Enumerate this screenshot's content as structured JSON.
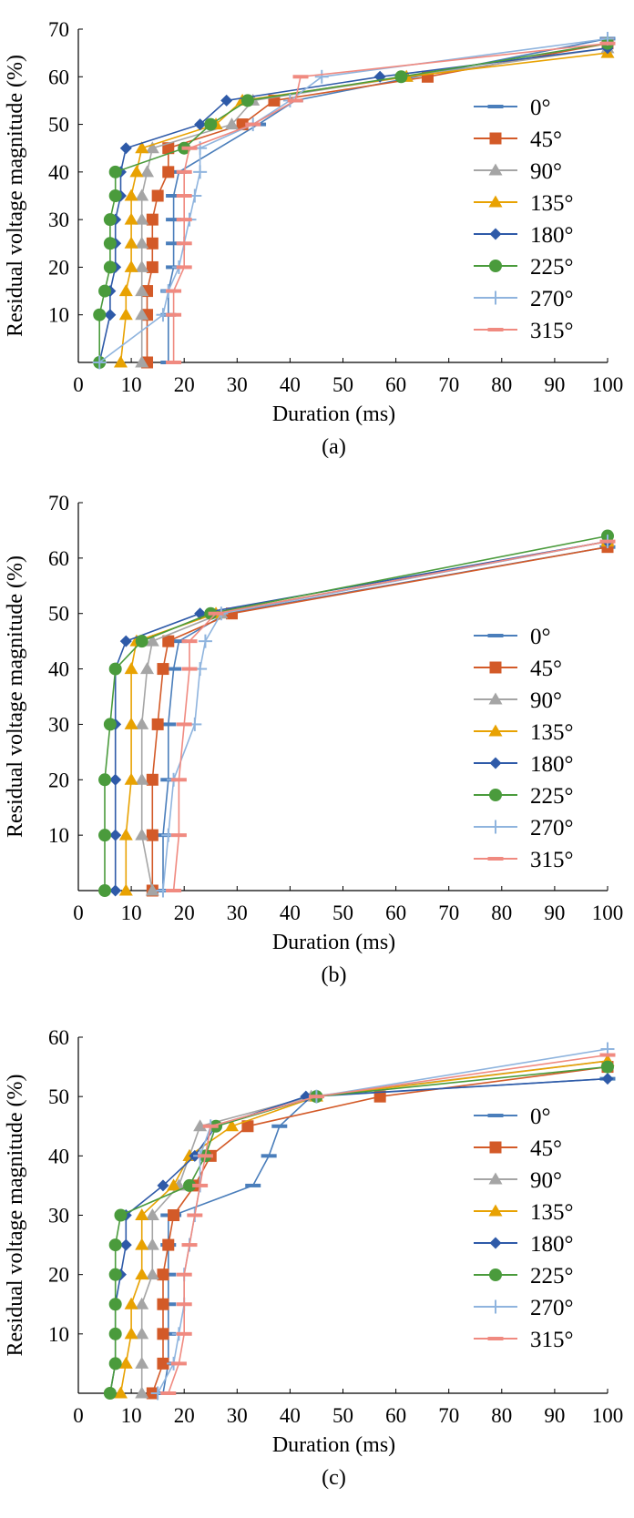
{
  "chart_data": [
    {
      "type": "line",
      "panel_label": "(a)",
      "xlabel": "Duration (ms)",
      "ylabel": "Residual voltage magnitude (%)",
      "xlim": [
        0,
        100
      ],
      "ylim": [
        0,
        70
      ],
      "xticks": [
        0,
        10,
        20,
        30,
        40,
        50,
        60,
        70,
        80,
        90,
        100
      ],
      "yticks": [
        10,
        20,
        30,
        40,
        50,
        60,
        70
      ],
      "grid": false,
      "legend_position": "right",
      "series": [
        {
          "name": "0°",
          "color": "#4a7ebb",
          "marker": "dash",
          "x": [
            17,
            17,
            17,
            18,
            18,
            18,
            18,
            19,
            34,
            41,
            100
          ],
          "y": [
            0,
            10,
            15,
            20,
            25,
            30,
            35,
            40,
            50,
            55,
            68
          ]
        },
        {
          "name": "45°",
          "color": "#d35a28",
          "marker": "square",
          "x": [
            13,
            13,
            13,
            14,
            14,
            14,
            15,
            17,
            17,
            31,
            37,
            66,
            100
          ],
          "y": [
            0,
            10,
            15,
            20,
            25,
            30,
            35,
            40,
            45,
            50,
            55,
            60,
            67
          ]
        },
        {
          "name": "90°",
          "color": "#a5a5a5",
          "marker": "triangle",
          "x": [
            12,
            12,
            12,
            12,
            12,
            12,
            12,
            13,
            14,
            29,
            33,
            62,
            100
          ],
          "y": [
            0,
            10,
            15,
            20,
            25,
            30,
            35,
            40,
            45,
            50,
            55,
            60,
            66
          ]
        },
        {
          "name": "135°",
          "color": "#e8a202",
          "marker": "triangle",
          "x": [
            8,
            9,
            9,
            10,
            10,
            10,
            10,
            11,
            12,
            26,
            31,
            62,
            100
          ],
          "y": [
            0,
            10,
            15,
            20,
            25,
            30,
            35,
            40,
            45,
            50,
            55,
            60,
            65
          ]
        },
        {
          "name": "180°",
          "color": "#2e5aa8",
          "marker": "diamond",
          "x": [
            4,
            6,
            6,
            7,
            7,
            7,
            8,
            8,
            9,
            23,
            28,
            57,
            100
          ],
          "y": [
            0,
            10,
            15,
            20,
            25,
            30,
            35,
            40,
            45,
            50,
            55,
            60,
            66
          ]
        },
        {
          "name": "225°",
          "color": "#4a9b3c",
          "marker": "circle",
          "x": [
            4,
            4,
            5,
            6,
            6,
            6,
            7,
            7,
            20,
            25,
            32,
            61,
            100
          ],
          "y": [
            0,
            10,
            15,
            20,
            25,
            30,
            35,
            40,
            45,
            50,
            55,
            60,
            67
          ]
        },
        {
          "name": "270°",
          "color": "#8fb4de",
          "marker": "plus",
          "x": [
            4,
            16,
            17,
            19,
            20,
            21,
            22,
            23,
            23,
            33,
            40,
            46,
            100
          ],
          "y": [
            0,
            10,
            15,
            20,
            25,
            30,
            35,
            40,
            45,
            50,
            55,
            60,
            68
          ]
        },
        {
          "name": "315°",
          "color": "#f08a80",
          "marker": "dash",
          "x": [
            18,
            18,
            18,
            20,
            20,
            20,
            20,
            20,
            21,
            33,
            41,
            42,
            100
          ],
          "y": [
            0,
            10,
            15,
            20,
            25,
            30,
            35,
            40,
            45,
            50,
            55,
            60,
            67
          ]
        }
      ]
    },
    {
      "type": "line",
      "panel_label": "(b)",
      "xlabel": "Duration (ms)",
      "ylabel": "Residual voltage magnitude (%)",
      "xlim": [
        0,
        100
      ],
      "ylim": [
        0,
        70
      ],
      "xticks": [
        0,
        10,
        20,
        30,
        40,
        50,
        60,
        70,
        80,
        90,
        100
      ],
      "yticks": [
        10,
        20,
        30,
        40,
        50,
        60,
        70
      ],
      "grid": false,
      "legend_position": "right",
      "series": [
        {
          "name": "0°",
          "color": "#4a7ebb",
          "marker": "dash",
          "x": [
            16,
            16,
            17,
            17,
            18,
            19,
            28,
            100
          ],
          "y": [
            0,
            10,
            20,
            30,
            40,
            45,
            50,
            62
          ]
        },
        {
          "name": "45°",
          "color": "#d35a28",
          "marker": "square",
          "x": [
            14,
            14,
            14,
            15,
            16,
            17,
            29,
            100
          ],
          "y": [
            0,
            10,
            20,
            30,
            40,
            45,
            50,
            62
          ]
        },
        {
          "name": "90°",
          "color": "#a5a5a5",
          "marker": "triangle",
          "x": [
            14,
            12,
            12,
            12,
            13,
            14,
            27,
            100
          ],
          "y": [
            0,
            10,
            20,
            30,
            40,
            45,
            50,
            63
          ]
        },
        {
          "name": "135°",
          "color": "#e8a202",
          "marker": "triangle",
          "x": [
            9,
            9,
            10,
            10,
            10,
            11,
            26,
            100
          ],
          "y": [
            0,
            10,
            20,
            30,
            40,
            45,
            50,
            63
          ]
        },
        {
          "name": "180°",
          "color": "#2e5aa8",
          "marker": "diamond",
          "x": [
            7,
            7,
            7,
            7,
            7,
            9,
            23,
            100
          ],
          "y": [
            0,
            10,
            20,
            30,
            40,
            45,
            50,
            63
          ]
        },
        {
          "name": "225°",
          "color": "#4a9b3c",
          "marker": "circle",
          "x": [
            5,
            5,
            5,
            6,
            7,
            12,
            25,
            100
          ],
          "y": [
            0,
            10,
            20,
            30,
            40,
            45,
            50,
            64
          ]
        },
        {
          "name": "270°",
          "color": "#8fb4de",
          "marker": "plus",
          "x": [
            16,
            17,
            18,
            22,
            23,
            24,
            27,
            100
          ],
          "y": [
            0,
            10,
            20,
            30,
            40,
            45,
            50,
            63
          ]
        },
        {
          "name": "315°",
          "color": "#f08a80",
          "marker": "dash",
          "x": [
            18,
            19,
            19,
            20,
            21,
            21,
            26,
            100
          ],
          "y": [
            0,
            10,
            20,
            30,
            40,
            45,
            50,
            63
          ]
        }
      ]
    },
    {
      "type": "line",
      "panel_label": "(c)",
      "xlabel": "Duration (ms)",
      "ylabel": "Residual voltage magnitude (%)",
      "xlim": [
        0,
        100
      ],
      "ylim": [
        0,
        60
      ],
      "xticks": [
        0,
        10,
        20,
        30,
        40,
        50,
        60,
        70,
        80,
        90,
        100
      ],
      "yticks": [
        10,
        20,
        30,
        40,
        50,
        60
      ],
      "grid": false,
      "legend_position": "right",
      "series": [
        {
          "name": "0°",
          "color": "#4a7ebb",
          "marker": "dash",
          "x": [
            16,
            17,
            17,
            17,
            17,
            17,
            17,
            18,
            33,
            36,
            38,
            44,
            100
          ],
          "y": [
            0,
            5,
            10,
            15,
            20,
            25,
            30,
            30,
            35,
            40,
            45,
            50,
            53
          ]
        },
        {
          "name": "45°",
          "color": "#d35a28",
          "marker": "square",
          "x": [
            14,
            16,
            16,
            16,
            16,
            17,
            18,
            22,
            25,
            32,
            57,
            100
          ],
          "y": [
            0,
            5,
            10,
            15,
            20,
            25,
            30,
            35,
            40,
            45,
            50,
            55
          ]
        },
        {
          "name": "90°",
          "color": "#a5a5a5",
          "marker": "triangle",
          "x": [
            12,
            12,
            12,
            12,
            14,
            14,
            14,
            19,
            21,
            23,
            44,
            100
          ],
          "y": [
            0,
            5,
            10,
            15,
            20,
            25,
            30,
            35,
            40,
            45,
            50,
            56
          ]
        },
        {
          "name": "135°",
          "color": "#e8a202",
          "marker": "triangle",
          "x": [
            8,
            9,
            10,
            10,
            12,
            12,
            12,
            18,
            21,
            29,
            45,
            100
          ],
          "y": [
            0,
            5,
            10,
            15,
            20,
            25,
            30,
            35,
            40,
            45,
            50,
            56
          ]
        },
        {
          "name": "180°",
          "color": "#2e5aa8",
          "marker": "diamond",
          "x": [
            6,
            7,
            7,
            7,
            8,
            9,
            9,
            16,
            22,
            26,
            43,
            100
          ],
          "y": [
            0,
            5,
            10,
            15,
            20,
            25,
            30,
            35,
            40,
            45,
            50,
            53
          ]
        },
        {
          "name": "225°",
          "color": "#4a9b3c",
          "marker": "circle",
          "x": [
            6,
            7,
            7,
            7,
            7,
            7,
            8,
            21,
            24,
            26,
            45,
            100
          ],
          "y": [
            0,
            5,
            10,
            15,
            20,
            25,
            30,
            35,
            40,
            45,
            50,
            55
          ]
        },
        {
          "name": "270°",
          "color": "#8fb4de",
          "marker": "plus",
          "x": [
            15,
            18,
            19,
            20,
            20,
            21,
            22,
            23,
            23,
            25,
            45,
            100
          ],
          "y": [
            0,
            5,
            10,
            15,
            20,
            25,
            30,
            35,
            40,
            45,
            50,
            58
          ]
        },
        {
          "name": "315°",
          "color": "#f08a80",
          "marker": "dash",
          "x": [
            17,
            19,
            20,
            20,
            20,
            21,
            22,
            23,
            24,
            25,
            45,
            100
          ],
          "y": [
            0,
            5,
            10,
            15,
            20,
            25,
            30,
            35,
            40,
            45,
            50,
            57
          ]
        }
      ]
    }
  ]
}
